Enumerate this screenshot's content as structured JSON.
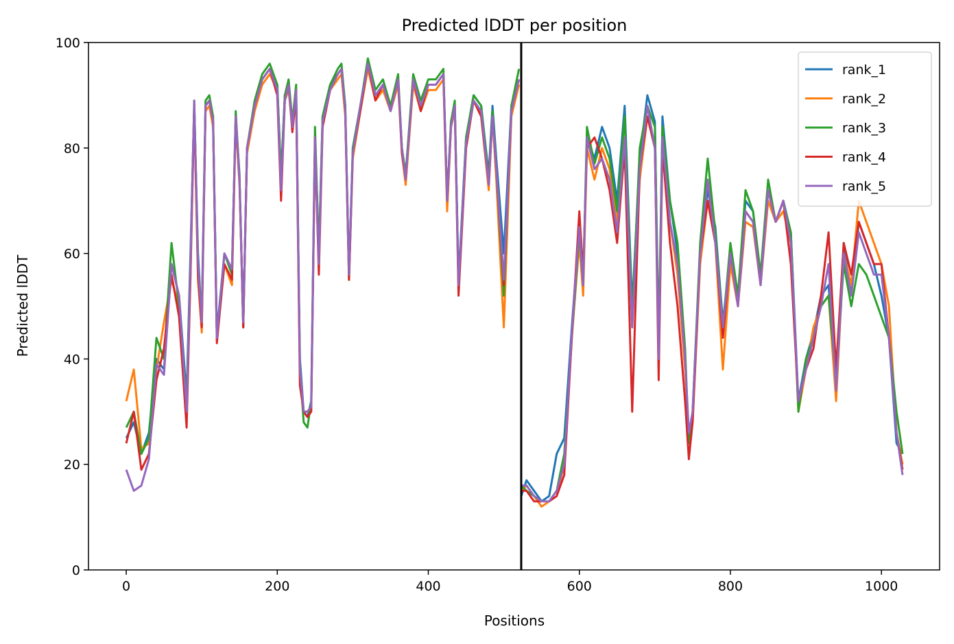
{
  "chart_data": {
    "type": "line",
    "title": "Predicted lDDT per position",
    "xlabel": "Positions",
    "ylabel": "Predicted lDDT",
    "xlim": [
      -50,
      1077
    ],
    "ylim": [
      0,
      100
    ],
    "xticks": [
      0,
      200,
      400,
      600,
      800,
      1000
    ],
    "yticks": [
      0,
      20,
      40,
      60,
      80,
      100
    ],
    "grid": false,
    "legend_position": "top-right",
    "vline_x": 523,
    "series": [
      {
        "name": "rank_1",
        "color": "#1f77b4",
        "x": [
          0,
          10,
          20,
          30,
          40,
          50,
          60,
          70,
          80,
          85,
          90,
          95,
          100,
          105,
          110,
          115,
          120,
          130,
          140,
          145,
          150,
          155,
          160,
          170,
          180,
          190,
          200,
          205,
          210,
          215,
          220,
          225,
          230,
          235,
          240,
          245,
          250,
          255,
          260,
          270,
          280,
          285,
          290,
          295,
          300,
          310,
          320,
          330,
          340,
          350,
          360,
          365,
          370,
          380,
          390,
          400,
          410,
          420,
          425,
          430,
          435,
          440,
          450,
          460,
          470,
          480,
          485,
          490,
          500,
          510,
          520,
          523,
          530,
          540,
          550,
          560,
          570,
          580,
          590,
          600,
          605,
          610,
          620,
          630,
          640,
          650,
          660,
          670,
          680,
          690,
          700,
          705,
          710,
          720,
          730,
          740,
          745,
          750,
          760,
          770,
          780,
          790,
          800,
          810,
          820,
          830,
          840,
          850,
          860,
          870,
          880,
          890,
          900,
          910,
          920,
          930,
          940,
          950,
          960,
          970,
          980,
          990,
          1000,
          1010,
          1020,
          1028
        ],
        "y": [
          25,
          28,
          22,
          26,
          40,
          38,
          58,
          52,
          33,
          60,
          88,
          60,
          47,
          88,
          89,
          85,
          45,
          60,
          57,
          86,
          75,
          46,
          80,
          88,
          93,
          95,
          92,
          75,
          90,
          92,
          85,
          91,
          40,
          30,
          29,
          32,
          82,
          60,
          86,
          92,
          94,
          95,
          88,
          56,
          80,
          88,
          96,
          90,
          92,
          88,
          93,
          80,
          75,
          93,
          88,
          92,
          92,
          94,
          70,
          85,
          88,
          55,
          82,
          90,
          88,
          75,
          88,
          78,
          60,
          88,
          93,
          14,
          17,
          15,
          13,
          14,
          22,
          25,
          46,
          65,
          55,
          82,
          78,
          84,
          80,
          70,
          88,
          50,
          78,
          90,
          85,
          40,
          86,
          70,
          60,
          40,
          24,
          30,
          60,
          72,
          65,
          47,
          60,
          52,
          70,
          68,
          56,
          72,
          66,
          70,
          64,
          32,
          40,
          45,
          52,
          54,
          36,
          62,
          52,
          66,
          62,
          58,
          52,
          44,
          24,
          22
        ]
      },
      {
        "name": "rank_2",
        "color": "#ff7f0e",
        "x": [
          0,
          10,
          20,
          30,
          40,
          50,
          60,
          70,
          80,
          85,
          90,
          95,
          100,
          105,
          110,
          115,
          120,
          130,
          140,
          145,
          150,
          155,
          160,
          170,
          180,
          190,
          200,
          205,
          210,
          215,
          220,
          225,
          230,
          235,
          240,
          245,
          250,
          255,
          260,
          270,
          280,
          285,
          290,
          295,
          300,
          310,
          320,
          330,
          340,
          350,
          360,
          365,
          370,
          380,
          390,
          400,
          410,
          420,
          425,
          430,
          435,
          440,
          450,
          460,
          470,
          480,
          485,
          490,
          500,
          510,
          520,
          523,
          530,
          540,
          550,
          560,
          570,
          580,
          590,
          600,
          605,
          610,
          620,
          630,
          640,
          650,
          660,
          670,
          680,
          690,
          700,
          705,
          710,
          720,
          730,
          740,
          745,
          750,
          760,
          770,
          780,
          790,
          800,
          810,
          820,
          830,
          840,
          850,
          860,
          870,
          880,
          890,
          900,
          910,
          920,
          930,
          940,
          950,
          960,
          970,
          980,
          990,
          1000,
          1010,
          1020,
          1028
        ],
        "y": [
          32,
          38,
          23,
          24,
          38,
          47,
          55,
          50,
          30,
          55,
          88,
          55,
          45,
          87,
          88,
          84,
          44,
          58,
          54,
          85,
          73,
          47,
          79,
          87,
          92,
          94,
          91,
          74,
          89,
          91,
          84,
          90,
          38,
          30,
          30,
          31,
          80,
          58,
          85,
          91,
          93,
          94,
          86,
          55,
          78,
          87,
          95,
          89,
          91,
          87,
          92,
          79,
          73,
          92,
          87,
          91,
          91,
          93,
          68,
          84,
          87,
          53,
          80,
          89,
          86,
          72,
          86,
          74,
          46,
          86,
          92,
          15,
          16,
          14,
          12,
          13,
          14,
          20,
          44,
          62,
          52,
          80,
          74,
          80,
          76,
          66,
          82,
          46,
          74,
          86,
          80,
          42,
          82,
          66,
          56,
          38,
          26,
          28,
          58,
          70,
          62,
          38,
          58,
          50,
          66,
          65,
          54,
          70,
          66,
          68,
          62,
          30,
          38,
          46,
          50,
          52,
          32,
          60,
          54,
          70,
          66,
          62,
          58,
          50,
          26,
          20
        ]
      },
      {
        "name": "rank_3",
        "color": "#2ca02c",
        "x": [
          0,
          10,
          20,
          30,
          40,
          50,
          60,
          70,
          80,
          85,
          90,
          95,
          100,
          105,
          110,
          115,
          120,
          130,
          140,
          145,
          150,
          155,
          160,
          170,
          180,
          190,
          200,
          205,
          210,
          215,
          220,
          225,
          230,
          235,
          240,
          245,
          250,
          255,
          260,
          270,
          280,
          285,
          290,
          295,
          300,
          310,
          320,
          330,
          340,
          350,
          360,
          365,
          370,
          380,
          390,
          400,
          410,
          420,
          425,
          430,
          435,
          440,
          450,
          460,
          470,
          480,
          485,
          490,
          500,
          510,
          520,
          523,
          530,
          540,
          550,
          560,
          570,
          580,
          590,
          600,
          605,
          610,
          620,
          630,
          640,
          650,
          660,
          670,
          680,
          690,
          700,
          705,
          710,
          720,
          730,
          740,
          745,
          750,
          760,
          770,
          780,
          790,
          800,
          810,
          820,
          830,
          840,
          850,
          860,
          870,
          880,
          890,
          900,
          910,
          920,
          930,
          940,
          950,
          960,
          970,
          980,
          990,
          1000,
          1010,
          1020,
          1028
        ],
        "y": [
          27,
          30,
          22,
          25,
          44,
          40,
          62,
          50,
          32,
          58,
          89,
          58,
          48,
          89,
          90,
          86,
          44,
          60,
          56,
          87,
          74,
          46,
          80,
          89,
          94,
          96,
          92,
          74,
          90,
          93,
          85,
          92,
          38,
          28,
          27,
          32,
          84,
          60,
          86,
          92,
          95,
          96,
          88,
          55,
          80,
          88,
          97,
          91,
          93,
          88,
          94,
          80,
          75,
          94,
          89,
          93,
          93,
          95,
          70,
          85,
          89,
          54,
          82,
          90,
          88,
          74,
          87,
          76,
          52,
          88,
          95,
          16,
          15,
          14,
          13,
          13,
          15,
          22,
          44,
          64,
          54,
          84,
          77,
          82,
          78,
          68,
          86,
          48,
          80,
          88,
          84,
          44,
          84,
          70,
          62,
          42,
          24,
          30,
          62,
          78,
          64,
          46,
          62,
          52,
          72,
          68,
          56,
          74,
          66,
          70,
          64,
          30,
          40,
          44,
          50,
          52,
          36,
          58,
          50,
          58,
          56,
          52,
          48,
          44,
          30,
          22
        ]
      },
      {
        "name": "rank_4",
        "color": "#d62728",
        "x": [
          0,
          10,
          20,
          30,
          40,
          50,
          60,
          70,
          80,
          85,
          90,
          95,
          100,
          105,
          110,
          115,
          120,
          130,
          140,
          145,
          150,
          155,
          160,
          170,
          180,
          190,
          200,
          205,
          210,
          215,
          220,
          225,
          230,
          235,
          240,
          245,
          250,
          255,
          260,
          270,
          280,
          285,
          290,
          295,
          300,
          310,
          320,
          330,
          340,
          350,
          360,
          365,
          370,
          380,
          390,
          400,
          410,
          420,
          425,
          430,
          435,
          440,
          450,
          460,
          470,
          480,
          485,
          490,
          500,
          510,
          520,
          523,
          530,
          540,
          550,
          560,
          570,
          580,
          590,
          600,
          605,
          610,
          620,
          630,
          640,
          650,
          660,
          670,
          680,
          690,
          700,
          705,
          710,
          720,
          730,
          740,
          745,
          750,
          760,
          770,
          780,
          790,
          800,
          810,
          820,
          830,
          840,
          850,
          860,
          870,
          880,
          890,
          900,
          910,
          920,
          930,
          940,
          950,
          960,
          970,
          980,
          990,
          1000,
          1010,
          1020,
          1028
        ],
        "y": [
          24,
          30,
          19,
          22,
          36,
          42,
          56,
          48,
          27,
          56,
          88,
          56,
          46,
          88,
          89,
          85,
          43,
          58,
          55,
          86,
          74,
          46,
          80,
          88,
          93,
          95,
          90,
          70,
          89,
          92,
          83,
          90,
          35,
          30,
          29,
          30,
          82,
          56,
          84,
          91,
          94,
          95,
          87,
          55,
          79,
          87,
          96,
          89,
          92,
          87,
          93,
          79,
          74,
          93,
          87,
          92,
          92,
          94,
          70,
          84,
          88,
          52,
          80,
          89,
          86,
          73,
          86,
          76,
          54,
          87,
          93,
          15,
          15,
          13,
          13,
          13,
          14,
          18,
          44,
          68,
          56,
          80,
          82,
          78,
          72,
          62,
          80,
          30,
          76,
          86,
          80,
          36,
          80,
          62,
          50,
          32,
          21,
          28,
          60,
          70,
          62,
          44,
          60,
          50,
          68,
          66,
          54,
          72,
          66,
          70,
          58,
          32,
          38,
          42,
          52,
          64,
          38,
          62,
          56,
          66,
          62,
          58,
          58,
          44,
          26,
          19
        ]
      },
      {
        "name": "rank_5",
        "color": "#9467bd",
        "x": [
          0,
          10,
          20,
          30,
          40,
          50,
          60,
          70,
          80,
          85,
          90,
          95,
          100,
          105,
          110,
          115,
          120,
          130,
          140,
          145,
          150,
          155,
          160,
          170,
          180,
          190,
          200,
          205,
          210,
          215,
          220,
          225,
          230,
          235,
          240,
          245,
          250,
          255,
          260,
          270,
          280,
          285,
          290,
          295,
          300,
          310,
          320,
          330,
          340,
          350,
          360,
          365,
          370,
          380,
          390,
          400,
          410,
          420,
          425,
          430,
          435,
          440,
          450,
          460,
          470,
          480,
          485,
          490,
          500,
          510,
          520,
          523,
          530,
          540,
          550,
          560,
          570,
          580,
          590,
          600,
          605,
          610,
          620,
          630,
          640,
          650,
          660,
          670,
          680,
          690,
          700,
          705,
          710,
          720,
          730,
          740,
          745,
          750,
          760,
          770,
          780,
          790,
          800,
          810,
          820,
          830,
          840,
          850,
          860,
          870,
          880,
          890,
          900,
          910,
          920,
          930,
          940,
          950,
          960,
          970,
          980,
          990,
          1000,
          1010,
          1020,
          1028
        ],
        "y": [
          19,
          15,
          16,
          21,
          39,
          37,
          58,
          52,
          30,
          58,
          89,
          58,
          47,
          88,
          89,
          85,
          44,
          60,
          57,
          86,
          74,
          47,
          80,
          88,
          93,
          95,
          91,
          72,
          89,
          92,
          84,
          91,
          38,
          30,
          30,
          31,
          82,
          58,
          85,
          91,
          94,
          95,
          87,
          56,
          79,
          88,
          96,
          90,
          92,
          87,
          93,
          80,
          74,
          93,
          88,
          92,
          92,
          94,
          70,
          84,
          88,
          54,
          81,
          89,
          87,
          73,
          86,
          76,
          55,
          87,
          93,
          16,
          16,
          14,
          13,
          13,
          15,
          20,
          45,
          65,
          54,
          82,
          76,
          78,
          74,
          64,
          82,
          46,
          76,
          88,
          80,
          40,
          82,
          66,
          58,
          40,
          26,
          30,
          60,
          74,
          62,
          46,
          60,
          50,
          68,
          66,
          54,
          72,
          66,
          70,
          62,
          32,
          38,
          44,
          50,
          58,
          34,
          60,
          52,
          64,
          60,
          56,
          56,
          44,
          26,
          18
        ]
      }
    ]
  }
}
